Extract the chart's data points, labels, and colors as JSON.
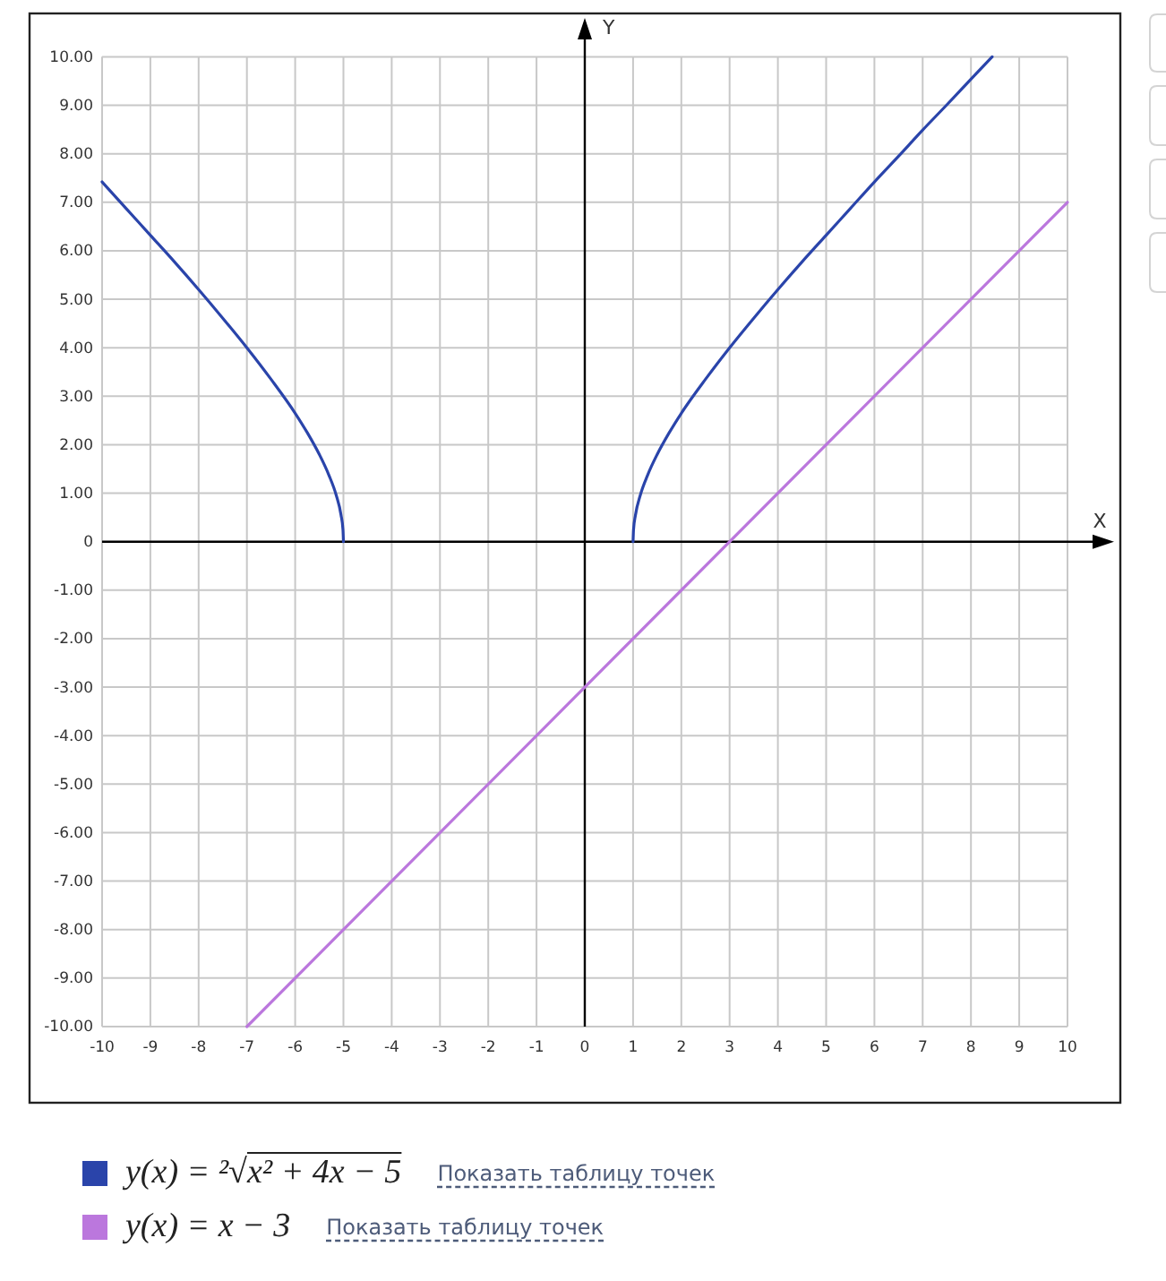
{
  "chart_data": {
    "type": "line",
    "xlabel": "X",
    "ylabel": "Y",
    "xlim": [
      -10,
      10
    ],
    "ylim": [
      -10,
      10
    ],
    "xticks": [
      -10,
      -9,
      -8,
      -7,
      -6,
      -5,
      -4,
      -3,
      -2,
      -1,
      0,
      1,
      2,
      3,
      4,
      5,
      6,
      7,
      8,
      9,
      10
    ],
    "yticks": [
      {
        "value": -10,
        "label": "-10.00"
      },
      {
        "value": -9,
        "label": "-9.00"
      },
      {
        "value": -8,
        "label": "-8.00"
      },
      {
        "value": -7,
        "label": "-7.00"
      },
      {
        "value": -6,
        "label": "-6.00"
      },
      {
        "value": -5,
        "label": "-5.00"
      },
      {
        "value": -4,
        "label": "-4.00"
      },
      {
        "value": -3,
        "label": "-3.00"
      },
      {
        "value": -2,
        "label": "-2.00"
      },
      {
        "value": -1,
        "label": "-1.00"
      },
      0,
      {
        "value": 1,
        "label": "1.00"
      },
      {
        "value": 2,
        "label": "2.00"
      },
      {
        "value": 3,
        "label": "3.00"
      },
      {
        "value": 4,
        "label": "4.00"
      },
      {
        "value": 5,
        "label": "5.00"
      },
      {
        "value": 6,
        "label": "6.00"
      },
      {
        "value": 7,
        "label": "7.00"
      },
      {
        "value": 8,
        "label": "8.00"
      },
      {
        "value": 9,
        "label": "9.00"
      },
      {
        "value": 10,
        "label": "10.00"
      }
    ],
    "grid": true,
    "legend": "bottom",
    "line_style": "solid",
    "annotations": [
      "Показать таблицу точек",
      "Показать таблицу точек"
    ],
    "series": [
      {
        "name": "y(x) = ²√x² + 4x − 5",
        "color": "#2a44aa",
        "x": [
          -10,
          -9.5,
          -9,
          -8.5,
          -8,
          -7.5,
          -7,
          -6.5,
          -6,
          -5.75,
          -5.5,
          -5.3,
          -5.15,
          -5.05,
          -5.01,
          -5,
          -2,
          1,
          1.01,
          1.05,
          1.15,
          1.3,
          1.5,
          1.75,
          2,
          2.5,
          3,
          3.5,
          4,
          4.5,
          5,
          5.5,
          6,
          6.5,
          7,
          7.5,
          8,
          8.44
        ],
        "values": [
          7.42,
          6.87,
          6.32,
          5.77,
          5.2,
          4.61,
          4,
          3.35,
          2.65,
          2.25,
          1.8,
          1.37,
          0.96,
          0.55,
          0.25,
          0,
          null,
          0,
          0.25,
          0.55,
          0.96,
          1.37,
          1.8,
          2.25,
          2.65,
          3.35,
          4,
          4.61,
          5.2,
          5.77,
          6.32,
          6.87,
          7.42,
          7.95,
          8.49,
          9.01,
          9.54,
          10
        ]
      },
      {
        "name": "y(x) = x − 3",
        "color": "#bb77dd",
        "x": [
          -7,
          10
        ],
        "values": [
          -10,
          7
        ]
      }
    ]
  }
}
